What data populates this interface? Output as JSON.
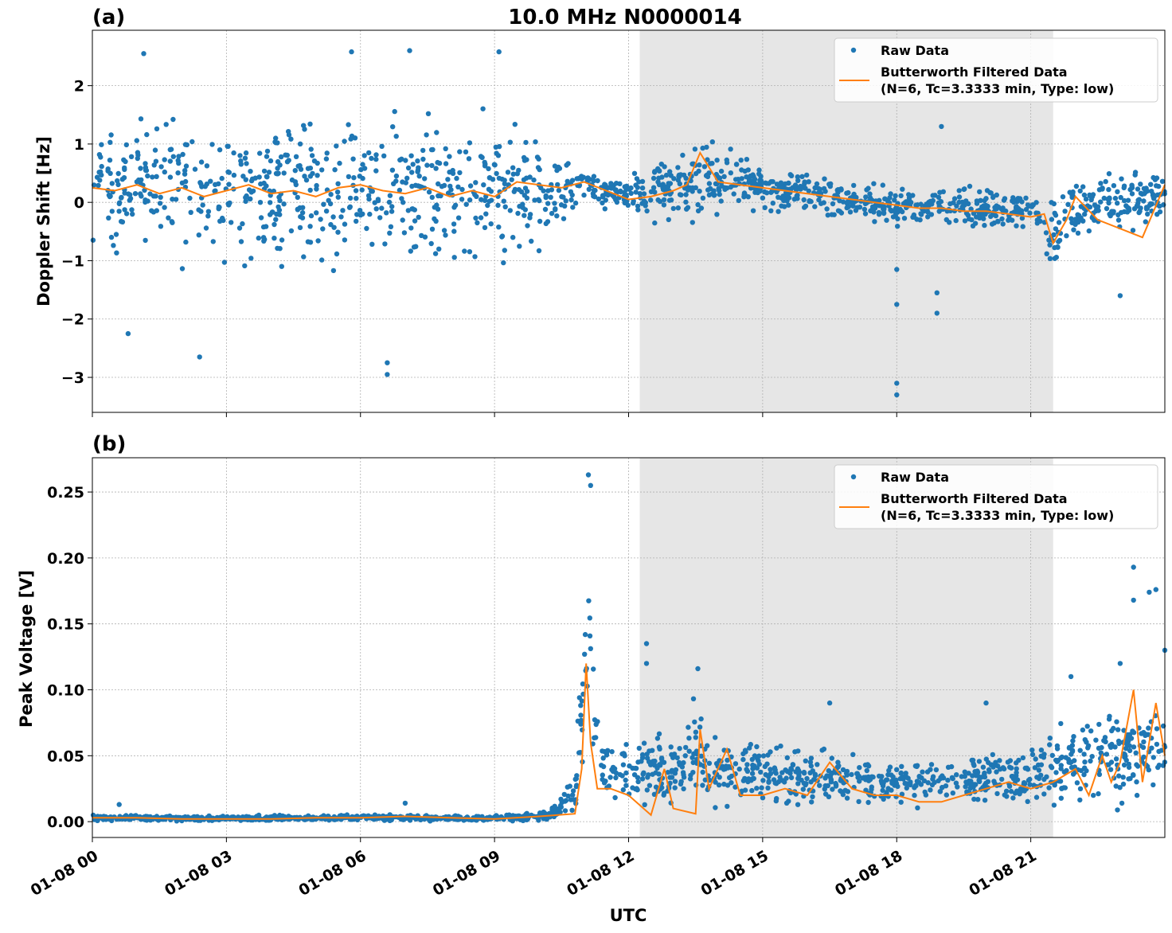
{
  "figure_title": "10.0 MHz N0000014",
  "xlabel": "UTC",
  "colors": {
    "raw": "#1f77b4",
    "filtered": "#ff7f0e",
    "night_shade": "#e6e6e6",
    "grid": "#b0b0b0"
  },
  "x_tick_labels": [
    "01-08 00",
    "01-08 03",
    "01-08 06",
    "01-08 09",
    "01-08 12",
    "01-08 15",
    "01-08 18",
    "01-08 21"
  ],
  "chart_data": [
    {
      "type": "scatter",
      "panel_label": "(a)",
      "title": "10.0 MHz N0000014",
      "xlabel": "",
      "ylabel": "Doppler Shift [Hz]",
      "x_unit": "hours UTC on 01-08",
      "xlim": [
        0,
        24
      ],
      "ylim": [
        -3.6,
        2.95
      ],
      "y_ticks": [
        -3,
        -2,
        -1,
        0,
        1,
        2
      ],
      "y_tick_labels": [
        "−3",
        "−2",
        "−1",
        "0",
        "1",
        "2"
      ],
      "grid": true,
      "shaded_interval_hours": [
        12.25,
        21.5
      ],
      "legend_position": "upper right",
      "legend": [
        "Raw Data",
        "Butterworth Filtered Data",
        "(N=6, Tc=3.3333 min, Type: low)"
      ],
      "series": [
        {
          "name": "Butterworth Filtered Data",
          "kind": "line",
          "x": [
            0,
            0.5,
            1,
            1.5,
            2,
            2.5,
            3,
            3.5,
            4,
            4.5,
            5,
            5.5,
            6,
            6.5,
            7,
            7.5,
            8,
            8.5,
            9,
            9.5,
            10,
            10.5,
            11,
            11.5,
            12,
            12.5,
            13,
            13.3,
            13.6,
            14,
            14.5,
            15,
            15.5,
            16,
            16.5,
            17,
            17.5,
            18,
            18.5,
            19,
            19.5,
            20,
            20.5,
            21,
            21.3,
            21.5,
            21.8,
            22,
            22.5,
            23,
            23.5,
            24
          ],
          "y": [
            0.25,
            0.2,
            0.3,
            0.15,
            0.25,
            0.1,
            0.2,
            0.3,
            0.15,
            0.2,
            0.1,
            0.25,
            0.3,
            0.2,
            0.15,
            0.25,
            0.1,
            0.2,
            0.1,
            0.35,
            0.3,
            0.25,
            0.35,
            0.2,
            0.05,
            0.1,
            0.2,
            0.3,
            0.85,
            0.35,
            0.3,
            0.25,
            0.2,
            0.15,
            0.1,
            0.05,
            0.0,
            -0.05,
            -0.1,
            -0.1,
            -0.15,
            -0.15,
            -0.2,
            -0.25,
            -0.2,
            -0.7,
            -0.3,
            0.1,
            -0.3,
            -0.45,
            -0.6,
            0.3
          ]
        },
        {
          "name": "Raw Data",
          "kind": "points",
          "envelope_x": [
            0,
            3,
            6,
            9,
            10.5,
            11,
            12,
            13.5,
            15,
            18,
            21,
            21.5,
            22,
            24
          ],
          "envelope_y_min": [
            -1.3,
            -1.4,
            -1.6,
            -1.4,
            -0.9,
            0.0,
            -0.3,
            -0.5,
            -0.2,
            -0.5,
            -0.6,
            -1.5,
            -0.8,
            -0.4
          ],
          "envelope_y_max": [
            2.0,
            1.8,
            2.0,
            1.9,
            1.2,
            0.6,
            0.5,
            1.3,
            0.7,
            0.4,
            0.3,
            0.4,
            0.6,
            0.6
          ],
          "outliers": [
            [
              0.8,
              -2.25
            ],
            [
              2.4,
              -2.65
            ],
            [
              6.6,
              -2.95
            ],
            [
              6.6,
              -2.75
            ],
            [
              18.0,
              -3.1
            ],
            [
              18.0,
              -3.3
            ],
            [
              18.0,
              -1.75
            ],
            [
              18.0,
              -1.15
            ],
            [
              18.9,
              -1.9
            ],
            [
              18.9,
              -1.55
            ],
            [
              7.1,
              2.6
            ],
            [
              1.15,
              2.55
            ],
            [
              5.8,
              2.58
            ],
            [
              9.1,
              2.58
            ],
            [
              19.0,
              1.3
            ],
            [
              23.0,
              -1.6
            ]
          ]
        }
      ]
    },
    {
      "type": "scatter",
      "panel_label": "(b)",
      "title": "",
      "xlabel": "UTC",
      "ylabel": "Peak Voltage [V]",
      "x_unit": "hours UTC on 01-08",
      "xlim": [
        0,
        24
      ],
      "ylim": [
        -0.012,
        0.276
      ],
      "y_ticks": [
        0.0,
        0.05,
        0.1,
        0.15,
        0.2,
        0.25
      ],
      "y_tick_labels": [
        "0.00",
        "0.05",
        "0.10",
        "0.15",
        "0.20",
        "0.25"
      ],
      "grid": true,
      "shaded_interval_hours": [
        12.25,
        21.5
      ],
      "legend_position": "upper right",
      "legend": [
        "Raw Data",
        "Butterworth Filtered Data",
        "(N=6, Tc=3.3333 min, Type: low)"
      ],
      "series": [
        {
          "name": "Butterworth Filtered Data",
          "kind": "line",
          "x": [
            0,
            1,
            2,
            3,
            4,
            5,
            6,
            7,
            8,
            9,
            10,
            10.8,
            10.95,
            11.05,
            11.15,
            11.3,
            11.6,
            12,
            12.5,
            12.8,
            13,
            13.5,
            13.6,
            13.8,
            14.2,
            14.5,
            15,
            15.5,
            16,
            16.5,
            17,
            17.5,
            18,
            18.5,
            19,
            19.5,
            20,
            20.5,
            21,
            21.5,
            22,
            22.3,
            22.6,
            22.8,
            23,
            23.3,
            23.5,
            23.8,
            24
          ],
          "y": [
            0.003,
            0.003,
            0.002,
            0.002,
            0.002,
            0.003,
            0.003,
            0.004,
            0.003,
            0.002,
            0.004,
            0.006,
            0.04,
            0.12,
            0.06,
            0.025,
            0.025,
            0.02,
            0.005,
            0.04,
            0.01,
            0.006,
            0.07,
            0.025,
            0.055,
            0.02,
            0.02,
            0.025,
            0.02,
            0.045,
            0.025,
            0.02,
            0.02,
            0.015,
            0.015,
            0.02,
            0.025,
            0.03,
            0.025,
            0.03,
            0.04,
            0.02,
            0.05,
            0.03,
            0.045,
            0.1,
            0.03,
            0.09,
            0.05
          ]
        },
        {
          "name": "Raw Data",
          "kind": "points",
          "envelope_x": [
            0,
            3,
            6,
            9,
            10.2,
            10.8,
            11.05,
            11.4,
            12,
            12.5,
            13,
            13.5,
            14,
            15,
            18,
            21,
            22,
            24
          ],
          "envelope_y_min": [
            0.0,
            0.0,
            0.0,
            0.0,
            0.0,
            0.0,
            0.02,
            0.01,
            0.005,
            0.0,
            0.002,
            0.002,
            0.005,
            0.008,
            0.005,
            0.008,
            0.005,
            0.01
          ],
          "envelope_y_max": [
            0.006,
            0.005,
            0.006,
            0.005,
            0.009,
            0.04,
            0.22,
            0.07,
            0.07,
            0.08,
            0.07,
            0.11,
            0.07,
            0.07,
            0.05,
            0.06,
            0.09,
            0.1
          ],
          "outliers": [
            [
              11.1,
              0.263
            ],
            [
              11.15,
              0.255
            ],
            [
              23.3,
              0.193
            ],
            [
              23.3,
              0.168
            ],
            [
              23.8,
              0.176
            ],
            [
              23.65,
              0.174
            ],
            [
              12.4,
              0.135
            ],
            [
              12.4,
              0.12
            ],
            [
              13.55,
              0.116
            ],
            [
              21.9,
              0.11
            ],
            [
              23.0,
              0.12
            ],
            [
              24.0,
              0.13
            ],
            [
              16.5,
              0.09
            ],
            [
              20.0,
              0.09
            ],
            [
              10.6,
              0.016
            ],
            [
              0.6,
              0.013
            ],
            [
              7.0,
              0.014
            ]
          ]
        }
      ]
    }
  ]
}
